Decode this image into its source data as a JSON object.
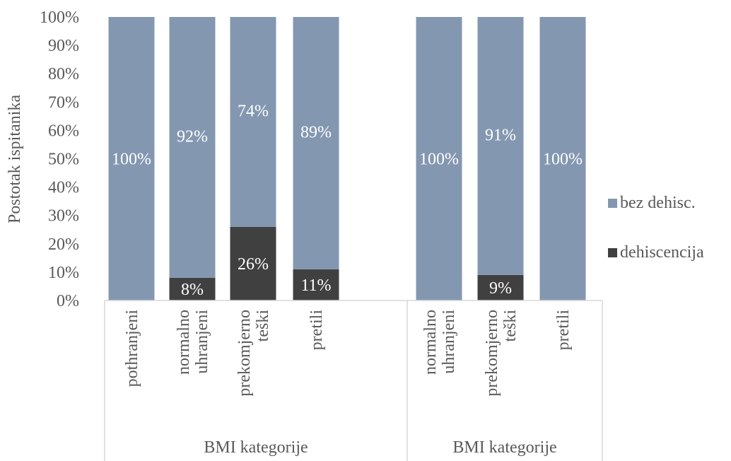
{
  "chart_data": {
    "type": "bar",
    "stacked": true,
    "percent": true,
    "ylabel": "Postotak ispitanika",
    "ylim": [
      0,
      100
    ],
    "yticks": [
      "0%",
      "10%",
      "20%",
      "30%",
      "40%",
      "50%",
      "60%",
      "70%",
      "80%",
      "90%",
      "100%"
    ],
    "groups": [
      {
        "label": "BMI kategorije",
        "categories": [
          [
            "pothranjeni"
          ],
          [
            "normalno",
            "uhranjeni"
          ],
          [
            "prekomjerno",
            "teški"
          ],
          [
            "pretili"
          ]
        ]
      },
      {
        "label": "BMI kategorije",
        "categories": [
          [
            "normalno",
            "uhranjeni"
          ],
          [
            "prekomjerno",
            "teški"
          ],
          [
            "pretili"
          ]
        ]
      }
    ],
    "series": [
      {
        "name": "dehiscencija",
        "color": "#404040",
        "values": [
          0,
          8,
          26,
          11,
          0,
          9,
          0
        ],
        "labels": [
          "",
          "8%",
          "26%",
          "11%",
          "",
          "9%",
          ""
        ]
      },
      {
        "name": "bez dehisc.",
        "color": "#8497b0",
        "values": [
          100,
          92,
          74,
          89,
          100,
          91,
          100
        ],
        "labels": [
          "100%",
          "92%",
          "74%",
          "89%",
          "100%",
          "91%",
          "100%"
        ]
      }
    ],
    "legend": {
      "position": "right",
      "items": [
        "bez dehisc.",
        "dehiscencija"
      ]
    },
    "grid": false
  }
}
